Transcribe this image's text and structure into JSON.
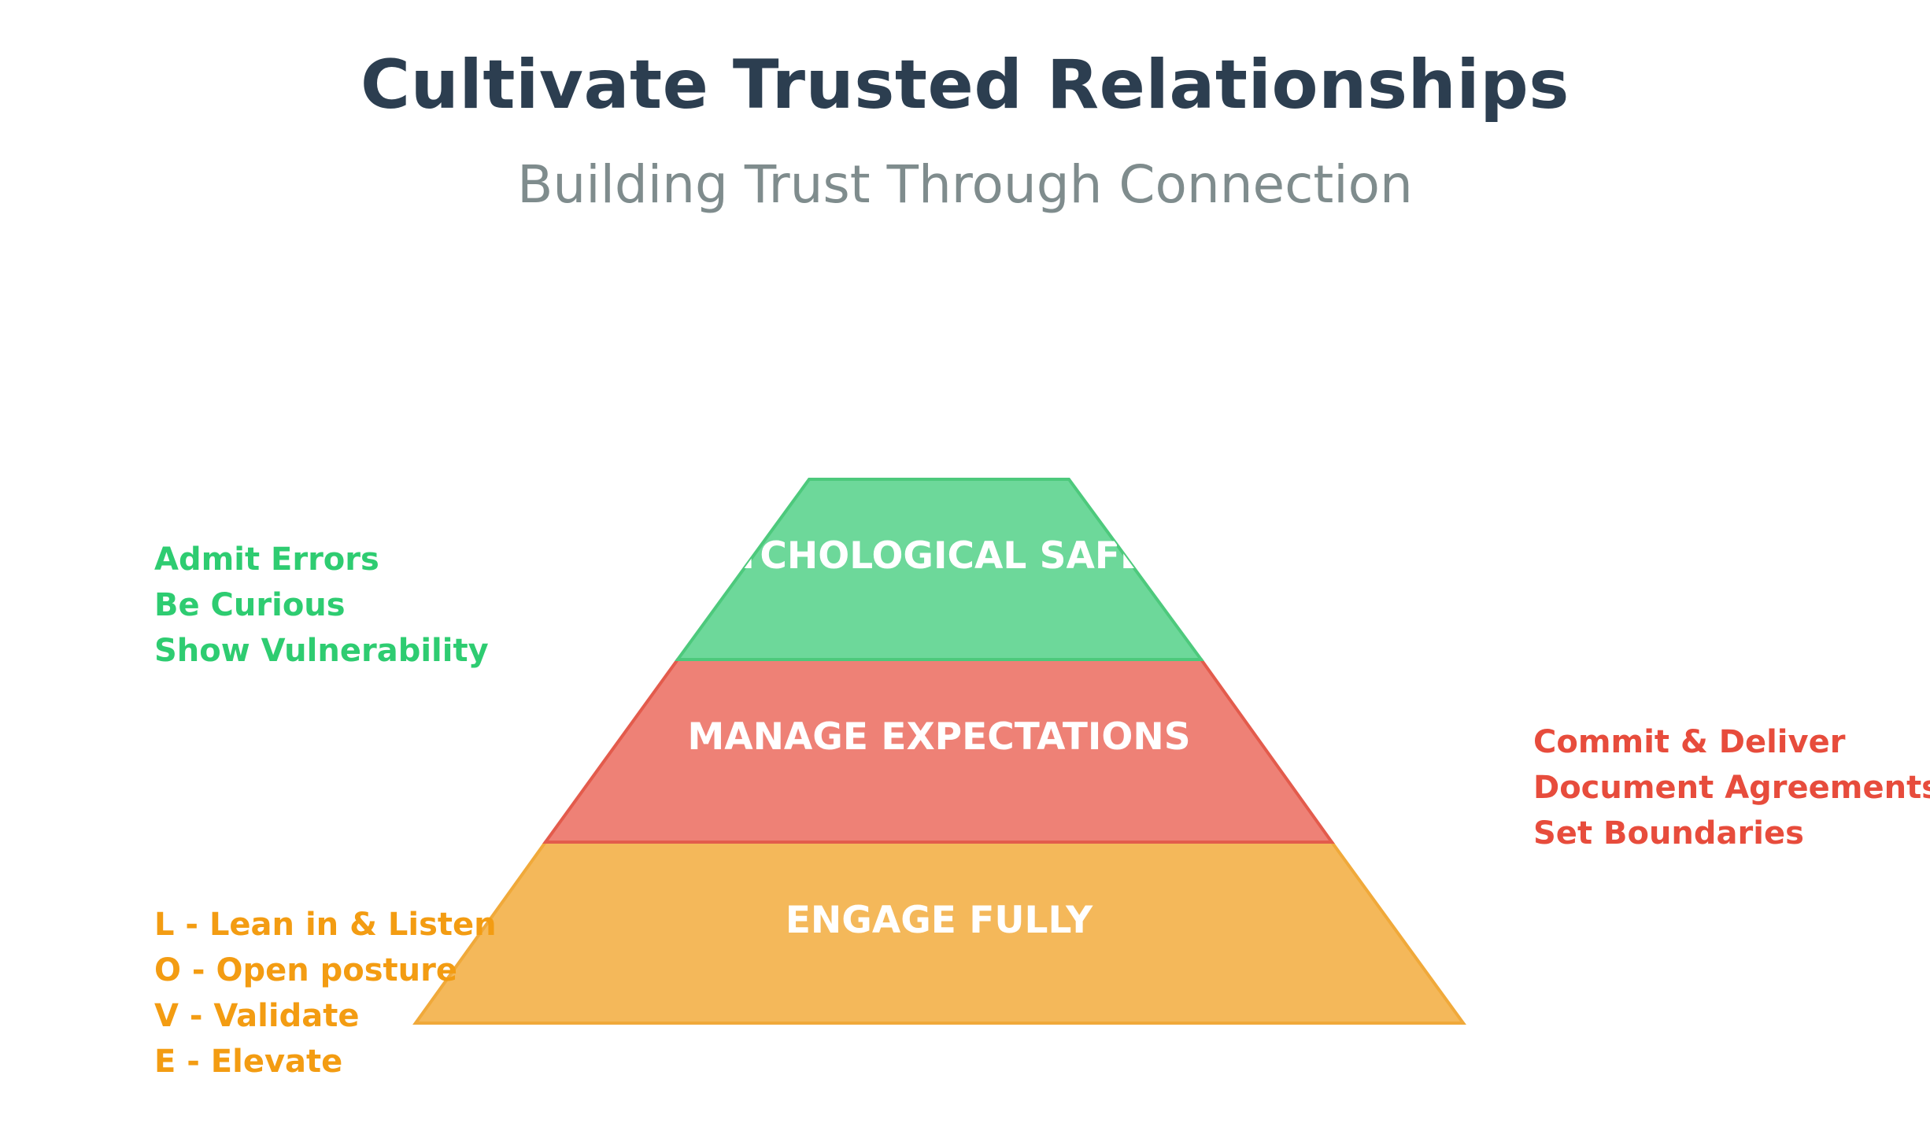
{
  "title": "Cultivate Trusted Relationships",
  "subtitle": "Building Trust Through Connection",
  "colors": {
    "title": "#2c3e50",
    "subtitle": "#7f8c8d"
  },
  "pyramid": {
    "layers": [
      {
        "label": "PSYCHOLOGICAL SAFETY",
        "fill": "#6dd89a",
        "stroke": "#4dc97c",
        "text_color": "#2ecc71",
        "items": [
          "Admit Errors",
          "Be Curious",
          "Show Vulnerability"
        ]
      },
      {
        "label": "MANAGE EXPECTATIONS",
        "fill": "#ee8176",
        "stroke": "#e35b4c",
        "text_color": "#e74c3c",
        "items": [
          "Commit & Deliver",
          "Document Agreements",
          "Set Boundaries"
        ]
      },
      {
        "label": "ENGAGE FULLY",
        "fill": "#f4b85a",
        "stroke": "#f0a93a",
        "text_color": "#f39c12",
        "items": [
          "L - Lean in & Listen",
          "O - Open posture",
          "V - Validate",
          "E - Elevate"
        ]
      }
    ]
  }
}
